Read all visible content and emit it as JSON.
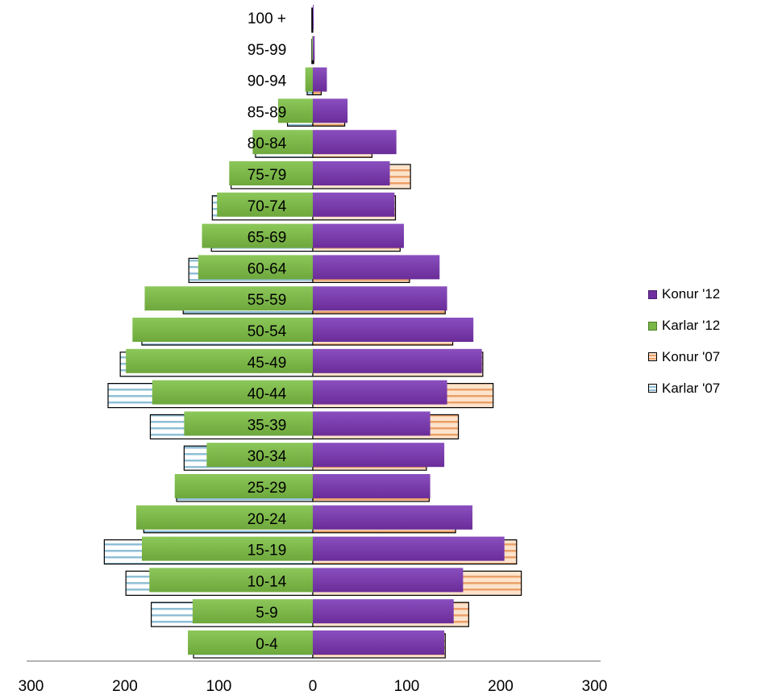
{
  "chart_data": {
    "type": "bar",
    "orientation": "horizontal",
    "subtype": "population-pyramid",
    "categories": [
      "0-4",
      "5-9",
      "10-14",
      "15-19",
      "20-24",
      "25-29",
      "30-34",
      "35-39",
      "40-44",
      "45-49",
      "50-54",
      "55-59",
      "60-64",
      "65-69",
      "70-74",
      "75-79",
      "80-84",
      "85-89",
      "90-94",
      "95-99",
      "100 +"
    ],
    "series": [
      {
        "name": "Konur '12",
        "side": "right",
        "color": "#7030a0",
        "values": [
          140,
          150,
          160,
          204,
          170,
          125,
          140,
          125,
          143,
          180,
          171,
          143,
          135,
          97,
          87,
          82,
          89,
          37,
          15,
          2,
          1
        ]
      },
      {
        "name": "Karlar '12",
        "side": "left",
        "color": "#7ab648",
        "values": [
          133,
          128,
          174,
          182,
          188,
          147,
          113,
          137,
          171,
          199,
          192,
          179,
          122,
          118,
          102,
          89,
          64,
          37,
          8,
          1,
          0
        ]
      },
      {
        "name": "Konur '07",
        "side": "right",
        "color": "#f6c9a0",
        "stripe": "#e8924f",
        "values": [
          141,
          166,
          222,
          217,
          152,
          124,
          121,
          155,
          192,
          181,
          149,
          141,
          103,
          93,
          88,
          104,
          63,
          34,
          9,
          1,
          0
        ]
      },
      {
        "name": "Karlar '07",
        "side": "left",
        "color": "#ffffff",
        "stripe": "#7fb3cc",
        "values": [
          127,
          172,
          199,
          222,
          180,
          145,
          137,
          173,
          218,
          205,
          182,
          138,
          132,
          108,
          107,
          87,
          61,
          27,
          6,
          1,
          1
        ]
      }
    ],
    "xlim": [
      -300,
      300
    ],
    "x_ticks": [
      "300",
      "200",
      "100",
      "0",
      "100",
      "200",
      "300"
    ],
    "legend_position": "right",
    "grid": false
  },
  "legend": {
    "items": [
      {
        "label": "Konur '12",
        "color": "#7030a0",
        "pattern": "solid"
      },
      {
        "label": "Karlar '12",
        "color": "#7ab648",
        "pattern": "solid"
      },
      {
        "label": "Konur '07",
        "color": "#f6c9a0",
        "pattern": "stripe-orange"
      },
      {
        "label": "Karlar '07",
        "color": "#ffffff",
        "pattern": "stripe-blue"
      }
    ]
  }
}
